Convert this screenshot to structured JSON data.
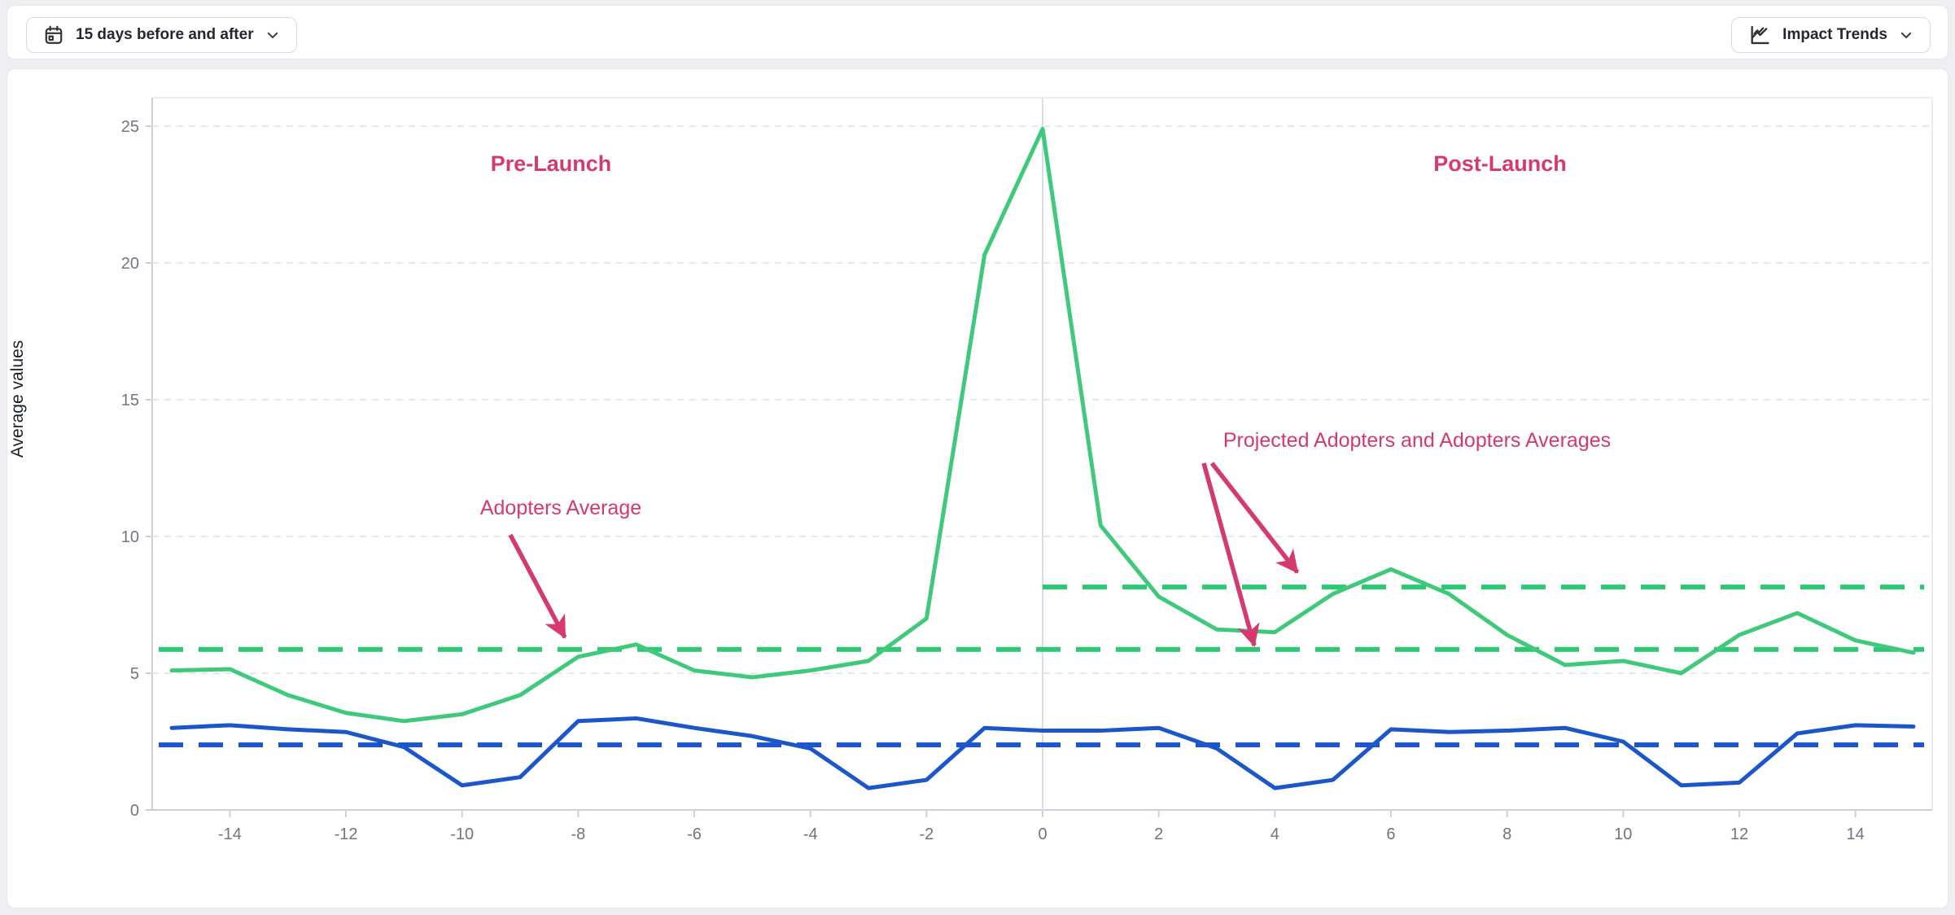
{
  "toolbar": {
    "date_range": {
      "label": "15 days before and after",
      "icon": "calendar-icon"
    },
    "chart_type": {
      "label": "Impact Trends",
      "icon": "trend-chart-icon"
    }
  },
  "chart_data": {
    "type": "line",
    "ylabel": "Average values",
    "xlim": [
      -15,
      15
    ],
    "ylim": [
      0,
      25
    ],
    "grid": "horizontal-dashed",
    "x_ticks": [
      -14,
      -12,
      -10,
      -8,
      -6,
      -4,
      -2,
      0,
      2,
      4,
      6,
      8,
      10,
      12,
      14
    ],
    "y_ticks": [
      0,
      5,
      10,
      15,
      20,
      25
    ],
    "x": [
      -15,
      -14,
      -13,
      -12,
      -11,
      -10,
      -9,
      -8,
      -7,
      -6,
      -5,
      -4,
      -3,
      -2,
      -1,
      0,
      1,
      2,
      3,
      4,
      5,
      6,
      7,
      8,
      9,
      10,
      11,
      12,
      13,
      14,
      15
    ],
    "series": [
      {
        "name": "Adopters",
        "color": "#3fc97a",
        "values": [
          5.1,
          5.15,
          4.2,
          3.55,
          3.25,
          3.5,
          4.2,
          5.6,
          6.05,
          5.1,
          4.85,
          5.1,
          5.45,
          7.0,
          20.3,
          24.9,
          10.4,
          7.8,
          6.6,
          6.5,
          7.9,
          8.8,
          7.9,
          6.4,
          5.3,
          5.45,
          5.0,
          6.4,
          7.2,
          6.2,
          5.75
        ]
      },
      {
        "name": "Projected Adopters",
        "color": "#1c56cb",
        "values": [
          3.0,
          3.1,
          2.95,
          2.85,
          2.3,
          0.9,
          1.2,
          3.25,
          3.35,
          3.0,
          2.7,
          2.25,
          0.8,
          1.1,
          3.0,
          2.9,
          2.9,
          3.0,
          2.25,
          0.8,
          1.1,
          2.95,
          2.85,
          2.9,
          3.0,
          2.5,
          0.9,
          1.0,
          2.8,
          3.1,
          3.05
        ]
      }
    ],
    "reference_lines": [
      {
        "name": "adopters-average-pre",
        "value": 5.87,
        "color": "#2ec873",
        "x_start": -15,
        "x_end": 15
      },
      {
        "name": "adopters-average-post",
        "value": 8.15,
        "color": "#2ec873",
        "x_start": 0,
        "x_end": 15
      },
      {
        "name": "projected-adopters-average",
        "value": 2.38,
        "color": "#1c56cb",
        "x_start": -15,
        "x_end": 15
      }
    ],
    "zero_line_x": 0,
    "annotations": {
      "pre_launch": "Pre-Launch",
      "post_launch": "Post-Launch",
      "adopters_average": "Adopters Average",
      "projected_adopters": "Projected Adopters and Adopters Averages"
    },
    "annotation_color": "#d43a71"
  }
}
